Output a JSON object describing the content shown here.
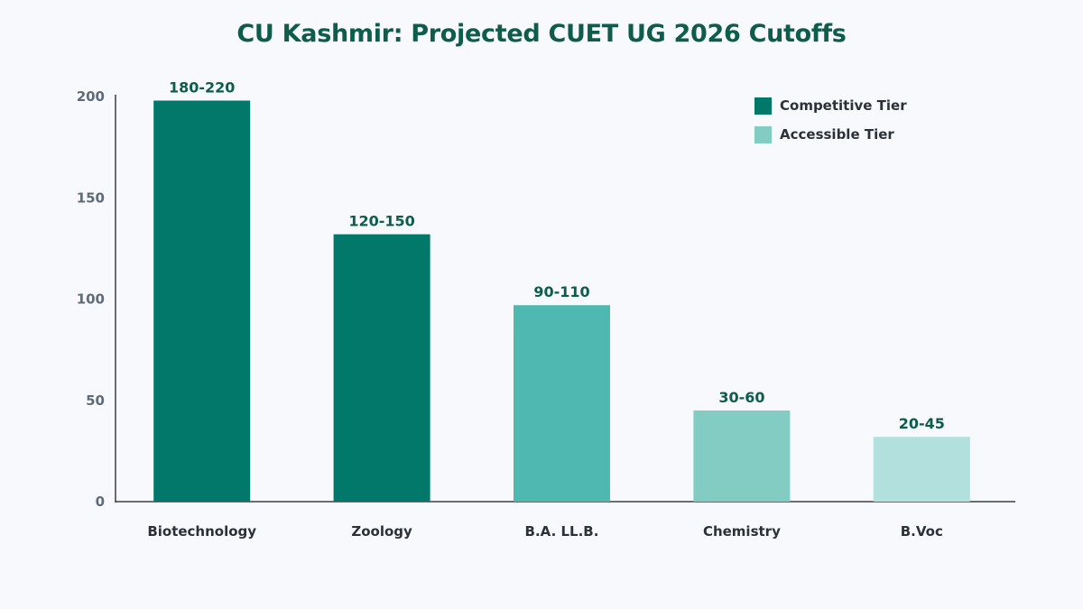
{
  "chart_data": {
    "type": "bar",
    "title": "CU Kashmir: Projected CUET UG 2026 Cutoffs",
    "xlabel": "",
    "ylabel": "",
    "categories": [
      "Biotechnology",
      "Zoology",
      "B.A. LL.B.",
      "Chemistry",
      "B.Voc"
    ],
    "values": [
      198,
      132,
      97,
      45,
      32
    ],
    "data_labels": [
      "180-220",
      "120-150",
      "90-110",
      "30-60",
      "20-45"
    ],
    "bar_colors": [
      "#02786a",
      "#02786a",
      "#4fb8b0",
      "#82ccc4",
      "#b2e0dc"
    ],
    "ylim": [
      0,
      200
    ],
    "yticks": [
      0,
      50,
      100,
      150,
      200
    ],
    "grid": false,
    "legend_position": "top-right",
    "legend": [
      {
        "label": "Competitive Tier",
        "color": "#02786a"
      },
      {
        "label": "Accessible Tier",
        "color": "#82ccc4"
      }
    ]
  }
}
